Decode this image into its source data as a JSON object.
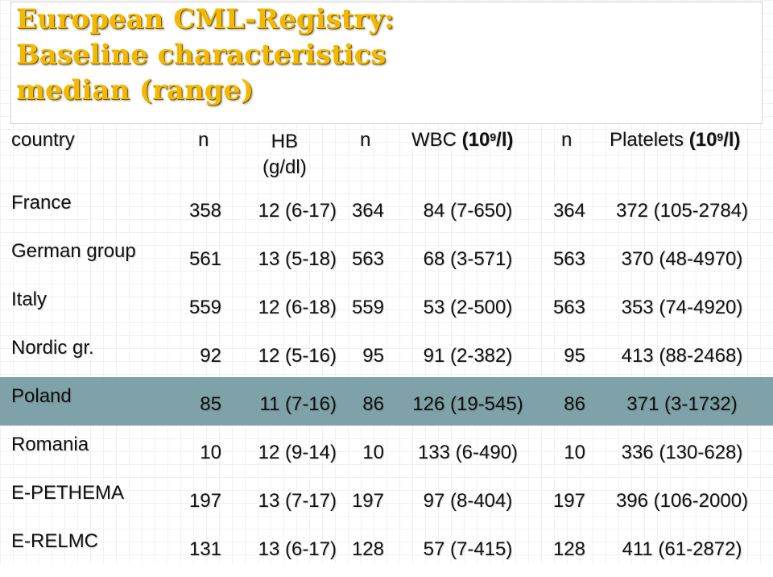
{
  "title": {
    "line1": "European CML-Registry:",
    "line2": "Baseline characteristics",
    "line3": "median (range)"
  },
  "colors": {
    "title": "#f5b800",
    "highlight_row": "#7fa1a8"
  },
  "table": {
    "headers": {
      "country": "country",
      "n1": "n",
      "hb": "HB",
      "hb_unit": "(g/dl)",
      "n2": "n",
      "wbc_label": "WBC",
      "wbc_unit_open": "(10",
      "wbc_unit_sup": "9",
      "wbc_unit_close": "/l)",
      "n3": "n",
      "plt_label": "Platelets",
      "plt_unit_open": "(10",
      "plt_unit_sup": "9",
      "plt_unit_close": "/l)"
    },
    "rows": [
      {
        "country": "France",
        "n1": "358",
        "hb": "12 (6-17)",
        "n2": "364",
        "wbc": "84 (7-650)",
        "n3": "364",
        "plt": "372 (105-2784)"
      },
      {
        "country": "German group",
        "n1": "561",
        "hb": "13 (5-18)",
        "n2": "563",
        "wbc": "68 (3-571)",
        "n3": "563",
        "plt": "370 (48-4970)"
      },
      {
        "country": "Italy",
        "n1": "559",
        "hb": "12 (6-18)",
        "n2": "559",
        "wbc": "53 (2-500)",
        "n3": "563",
        "plt": "353 (74-4920)"
      },
      {
        "country": "Nordic gr.",
        "n1": "92",
        "hb": "12 (5-16)",
        "n2": "95",
        "wbc": "91 (2-382)",
        "n3": "95",
        "plt": "413 (88-2468)"
      },
      {
        "country": "Poland",
        "n1": "85",
        "hb": "11 (7-16)",
        "n2": "86",
        "wbc": "126 (19-545)",
        "n3": "86",
        "plt": "371 (3-1732)"
      },
      {
        "country": "Romania",
        "n1": "10",
        "hb": "12 (9-14)",
        "n2": "10",
        "wbc": "133 (6-490)",
        "n3": "10",
        "plt": "336 (130-628)"
      },
      {
        "country": "E-PETHEMA",
        "n1": "197",
        "hb": "13 (7-17)",
        "n2": "197",
        "wbc": "97 (8-404)",
        "n3": "197",
        "plt": "396 (106-2000)"
      },
      {
        "country": "E-RELMC",
        "n1": "131",
        "hb": "13 (6-17)",
        "n2": "128",
        "wbc": "57 (7-415)",
        "n3": "128",
        "plt": "411 (61-2872)"
      }
    ]
  }
}
